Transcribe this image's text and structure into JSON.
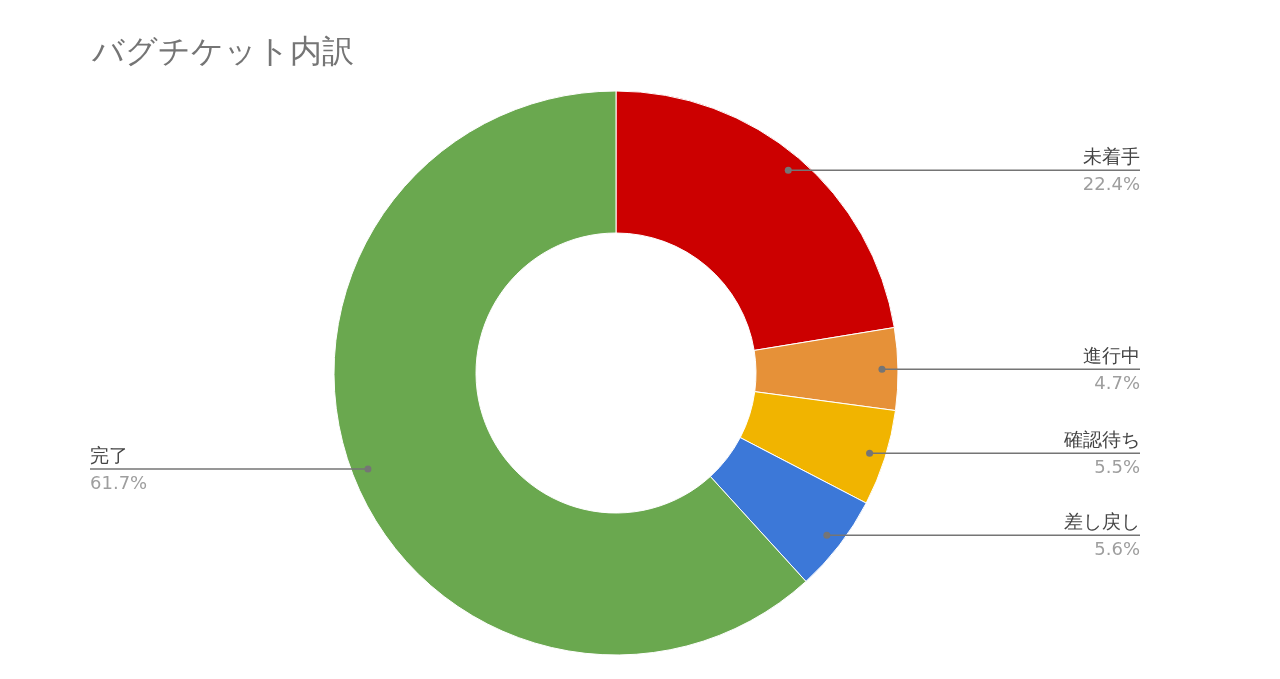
{
  "chart_data": {
    "type": "donut",
    "title": "バグチケット内訳",
    "categories": [
      "未着手",
      "進行中",
      "確認待ち",
      "差し戻し",
      "完了"
    ],
    "values": [
      22.4,
      4.7,
      5.5,
      5.6,
      61.7
    ],
    "colors": [
      "#cc0000",
      "#e69138",
      "#f1b400",
      "#3c78d8",
      "#6aa84f"
    ],
    "value_labels": [
      "22.4%",
      "4.7%",
      "5.5%",
      "5.6%",
      "61.7%"
    ]
  }
}
